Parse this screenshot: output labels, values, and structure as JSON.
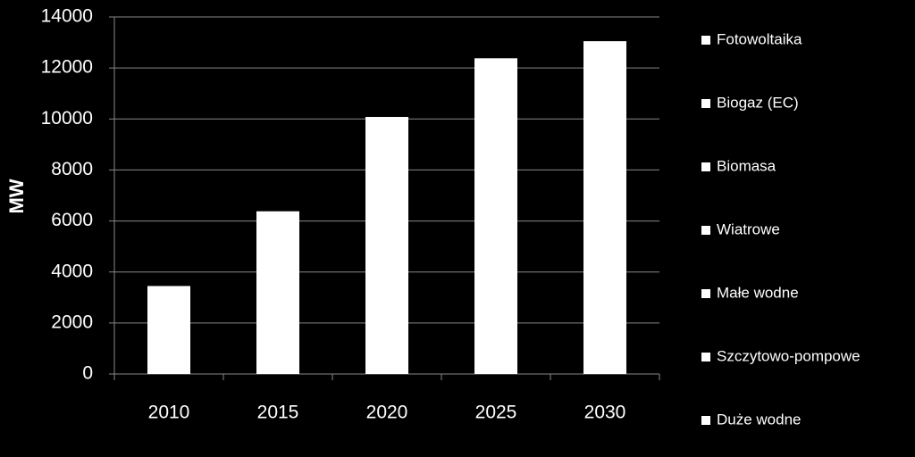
{
  "chart_data": {
    "type": "bar",
    "y_label": "MW",
    "categories": [
      "2010",
      "2015",
      "2020",
      "2025",
      "2030"
    ],
    "values": [
      3450,
      6380,
      10080,
      12380,
      13050
    ],
    "color": "#ffffff",
    "legend_entries": [
      "Fotowoltaika",
      "Biogaz (EC)",
      "Biomasa",
      "Wiatrowe",
      "Małe wodne",
      "Szczytowo-pompowe",
      "Duże wodne"
    ],
    "ylim": [
      0,
      14000
    ],
    "yticks": [
      0,
      2000,
      4000,
      6000,
      8000,
      10000,
      12000,
      14000
    ],
    "grid": true
  }
}
